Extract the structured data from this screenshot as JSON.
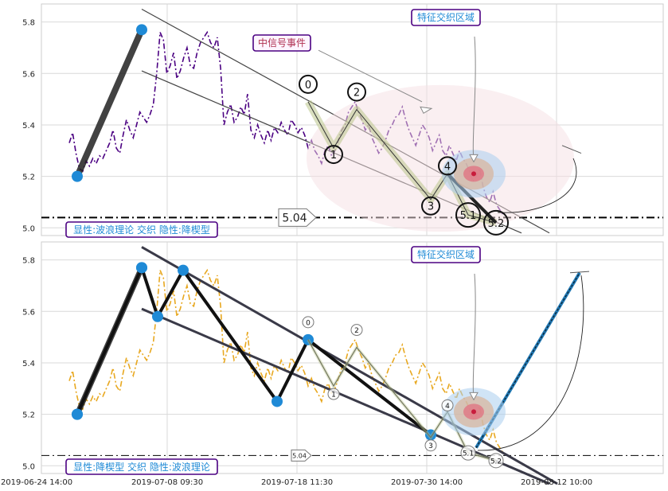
{
  "colors": {
    "series_top": "#4b0082",
    "series_bottom": "#e8a820",
    "wave_blue": "#1f8ad6",
    "badge_border": "#4b0082",
    "badge_text": "#1f8ad6",
    "badge_red_text": "#b03050",
    "trend_line": "#3a3a48",
    "arrow_blue": "#1f78b4"
  },
  "x_ticks": [
    "2019-06-24 14:00",
    "2019-07-08 09:30",
    "2019-07-18 11:30",
    "2019-07-30 14:00",
    "2019-08-12 10:00"
  ],
  "chart_data": [
    {
      "type": "line",
      "panel": "top",
      "ylim": [
        4.97,
        5.87
      ],
      "y_ticks": [
        "5.0",
        "5.2",
        "5.4",
        "5.6",
        "5.8"
      ],
      "grid": true,
      "series_style": "dash-dot",
      "y_values": [
        5.33,
        5.37,
        5.29,
        5.23,
        5.22,
        5.26,
        5.24,
        5.27,
        5.25,
        5.28,
        5.27,
        5.3,
        5.33,
        5.38,
        5.31,
        5.29,
        5.36,
        5.42,
        5.38,
        5.35,
        5.4,
        5.45,
        5.43,
        5.41,
        5.44,
        5.48,
        5.6,
        5.76,
        5.73,
        5.6,
        5.63,
        5.68,
        5.58,
        5.61,
        5.66,
        5.7,
        5.63,
        5.62,
        5.68,
        5.72,
        5.74,
        5.76,
        5.72,
        5.7,
        5.74,
        5.62,
        5.4,
        5.45,
        5.48,
        5.41,
        5.43,
        5.47,
        5.44,
        5.52,
        5.38,
        5.35,
        5.4,
        5.36,
        5.33,
        5.38,
        5.34,
        5.39,
        5.37,
        5.41,
        5.38,
        5.36,
        5.42,
        5.4,
        5.37,
        5.39,
        5.36,
        5.31,
        5.34,
        5.3,
        5.28,
        5.25,
        5.3,
        5.32,
        5.28,
        5.3,
        5.34,
        5.38,
        5.4,
        5.45,
        5.47,
        5.49,
        5.45,
        5.42,
        5.38,
        5.4,
        5.35,
        5.32,
        5.29,
        5.31,
        5.34,
        5.38,
        5.4,
        5.43,
        5.44,
        5.47,
        5.42,
        5.38,
        5.35,
        5.32,
        5.36,
        5.4,
        5.38,
        5.35,
        5.3,
        5.33,
        5.36,
        5.3,
        5.28,
        5.32,
        5.29,
        5.26,
        5.3,
        5.27,
        5.25,
        5.22,
        5.18,
        5.2,
        5.23,
        5.16,
        5.12,
        5.1,
        5.14,
        5.09,
        5.07,
        5.05
      ],
      "wave_points": [
        {
          "label": "0",
          "y": 5.49
        },
        {
          "label": "1",
          "y": 5.31
        },
        {
          "label": "2",
          "y": 5.46
        },
        {
          "label": "3",
          "y": 5.11
        },
        {
          "label": "4",
          "y": 5.21
        },
        {
          "label": "5.1",
          "y": 5.05
        },
        {
          "label": "5.2",
          "y": 5.02
        }
      ],
      "impulse": {
        "from_y": 5.21,
        "to_y": 5.77
      },
      "support_level": 5.04,
      "support_label": "5.04",
      "annotations": [
        "中信号事件",
        "特征交织区域",
        "显性:波浪理论 交织 隐性:降楔型"
      ]
    },
    {
      "type": "line",
      "panel": "bottom",
      "ylim": [
        4.97,
        5.87
      ],
      "y_ticks": [
        "5.0",
        "5.2",
        "5.4",
        "5.6",
        "5.8"
      ],
      "grid": true,
      "series_style": "dash-dot",
      "y_values": [
        5.33,
        5.37,
        5.29,
        5.23,
        5.22,
        5.26,
        5.24,
        5.27,
        5.25,
        5.28,
        5.27,
        5.3,
        5.33,
        5.38,
        5.31,
        5.29,
        5.36,
        5.42,
        5.38,
        5.35,
        5.4,
        5.45,
        5.43,
        5.41,
        5.44,
        5.48,
        5.6,
        5.76,
        5.73,
        5.6,
        5.63,
        5.68,
        5.58,
        5.61,
        5.66,
        5.7,
        5.63,
        5.62,
        5.68,
        5.72,
        5.74,
        5.76,
        5.72,
        5.7,
        5.74,
        5.62,
        5.4,
        5.45,
        5.48,
        5.41,
        5.43,
        5.47,
        5.44,
        5.52,
        5.38,
        5.35,
        5.4,
        5.36,
        5.33,
        5.38,
        5.34,
        5.39,
        5.37,
        5.41,
        5.38,
        5.36,
        5.42,
        5.4,
        5.37,
        5.39,
        5.36,
        5.31,
        5.34,
        5.3,
        5.28,
        5.25,
        5.3,
        5.32,
        5.28,
        5.3,
        5.34,
        5.38,
        5.4,
        5.45,
        5.47,
        5.49,
        5.45,
        5.42,
        5.38,
        5.4,
        5.35,
        5.32,
        5.29,
        5.31,
        5.34,
        5.38,
        5.4,
        5.43,
        5.44,
        5.47,
        5.42,
        5.38,
        5.35,
        5.32,
        5.36,
        5.4,
        5.38,
        5.35,
        5.3,
        5.33,
        5.36,
        5.3,
        5.28,
        5.32,
        5.29,
        5.26,
        5.3,
        5.27,
        5.25,
        5.22,
        5.18,
        5.2,
        5.23,
        5.16,
        5.12,
        5.1,
        5.14,
        5.09,
        5.07,
        5.05
      ],
      "wedge_points_y": [
        5.2,
        5.77,
        5.58,
        5.76,
        5.25,
        5.49,
        5.12
      ],
      "wave_points": [
        {
          "label": "0",
          "y": 5.49
        },
        {
          "label": "1",
          "y": 5.31
        },
        {
          "label": "2",
          "y": 5.46
        },
        {
          "label": "3",
          "y": 5.11
        },
        {
          "label": "4",
          "y": 5.21
        },
        {
          "label": "5.1",
          "y": 5.05
        },
        {
          "label": "5.2",
          "y": 5.02
        }
      ],
      "target_y": 5.75,
      "support_level": 5.04,
      "support_label": "5.04",
      "annotations": [
        "特征交织区域",
        "显性:降楔型 交织 隐性:波浪理论"
      ]
    }
  ],
  "labels": {
    "top_signal": "中信号事件",
    "top_zone": "特征交织区域",
    "top_caption": "显性:波浪理论 交织 隐性:降楔型",
    "bottom_zone": "特征交织区域",
    "bottom_caption": "显性:降楔型 交织 隐性:波浪理论"
  }
}
